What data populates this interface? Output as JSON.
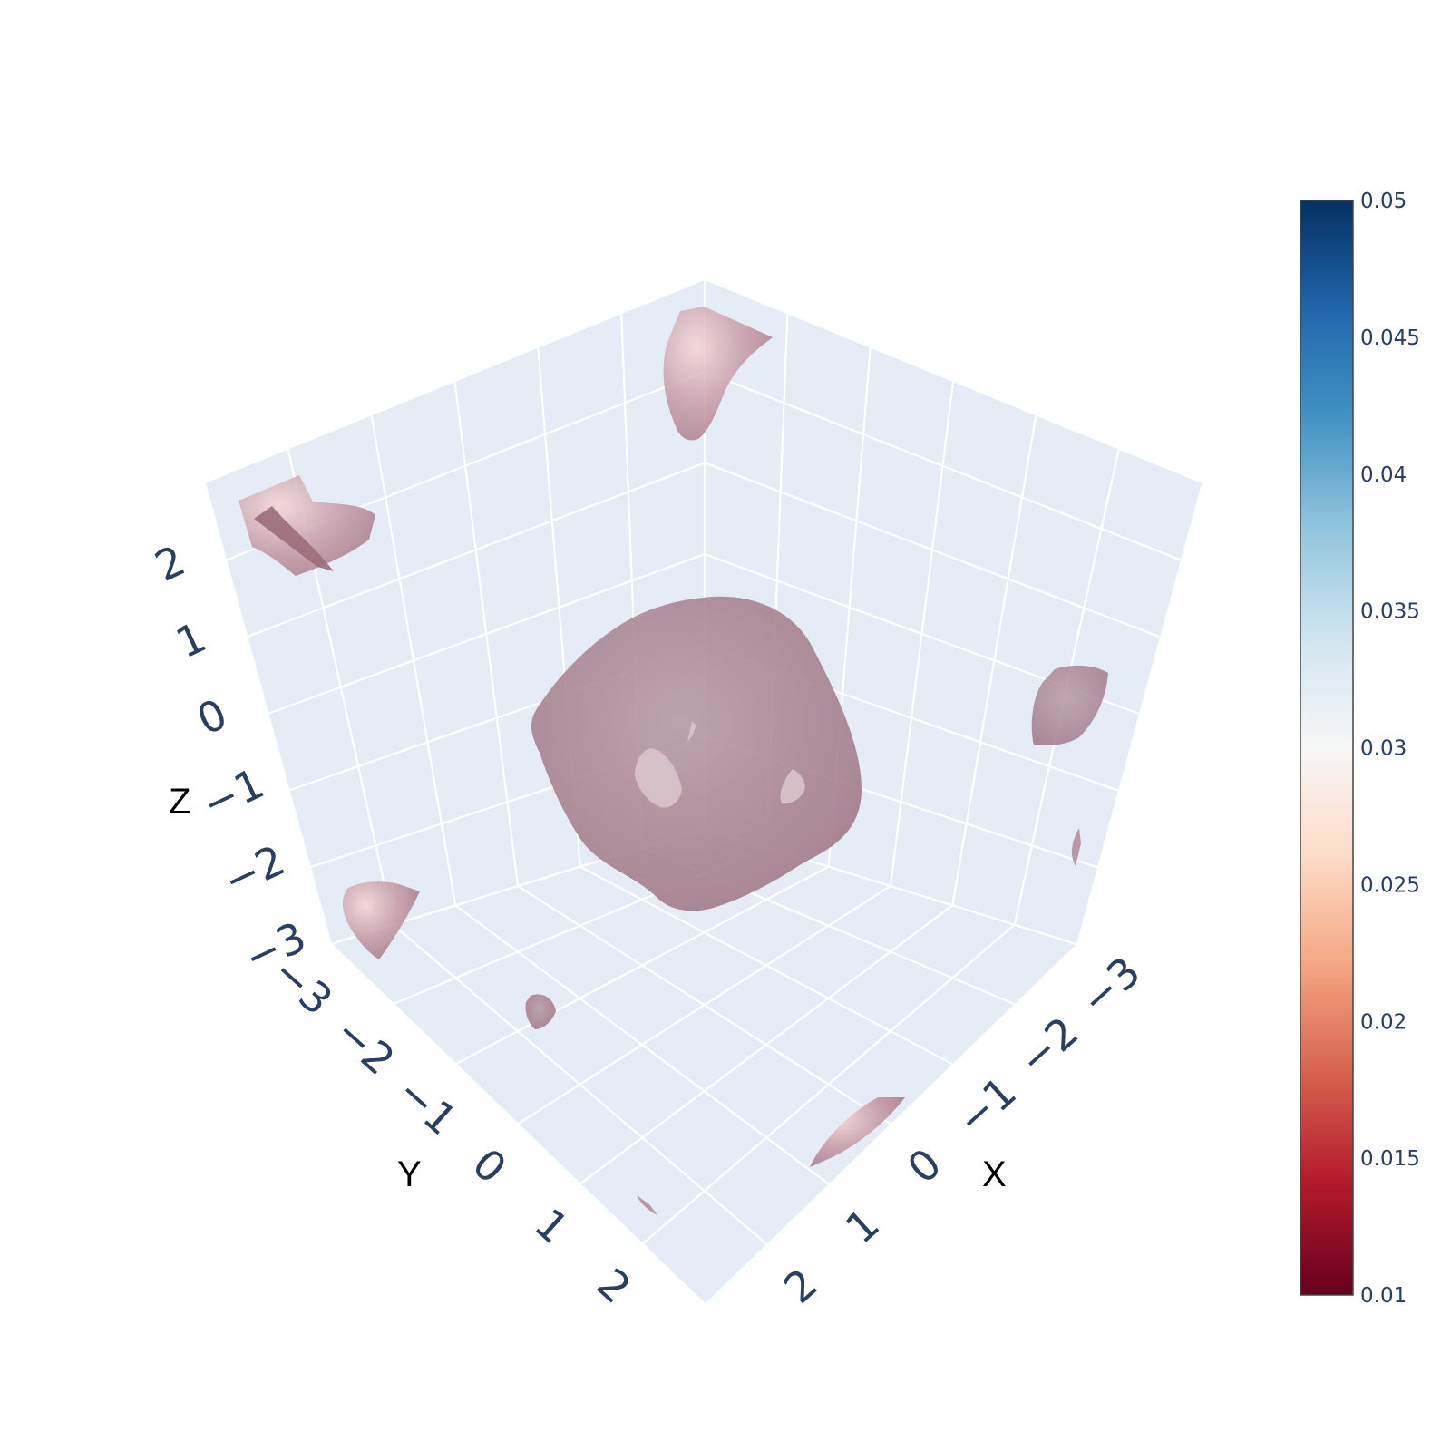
{
  "chart_data": {
    "type": "isosurface",
    "axes": {
      "x": {
        "title": "X",
        "ticks": [
          "−3",
          "−2",
          "−1",
          "0",
          "1",
          "2"
        ],
        "range": [
          -3,
          3
        ]
      },
      "y": {
        "title": "Y",
        "ticks": [
          "−3",
          "−2",
          "−1",
          "0",
          "1",
          "2"
        ],
        "range": [
          -3,
          3
        ]
      },
      "z": {
        "title": "Z",
        "ticks": [
          "−3",
          "−2",
          "−1",
          "0",
          "1",
          "2"
        ],
        "range": [
          -3,
          3
        ]
      }
    },
    "colorbar": {
      "colorscale": "RdBu",
      "range": [
        0.01,
        0.05
      ],
      "ticks": [
        "0.01",
        "0.015",
        "0.02",
        "0.025",
        "0.03",
        "0.035",
        "0.04",
        "0.045",
        "0.05"
      ],
      "colors": [
        "#67001f",
        "#b2182b",
        "#d6604d",
        "#f4a582",
        "#fddbc7",
        "#f7f7f7",
        "#d1e5f0",
        "#92c5de",
        "#4393c3",
        "#2166ac",
        "#053061"
      ]
    },
    "surface_color": "#a0707f",
    "grid": true,
    "legend": "none"
  }
}
